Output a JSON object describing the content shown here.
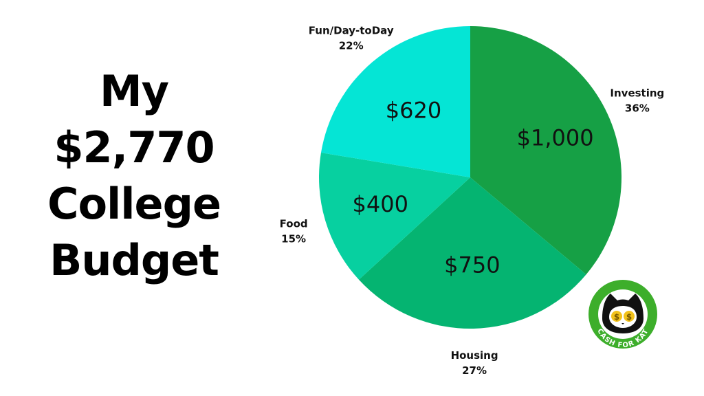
{
  "title_lines": [
    "My",
    "$2,770",
    "College",
    "Budget"
  ],
  "chart_data": {
    "type": "pie",
    "title": "My $2,770 College Budget",
    "total": 2770,
    "start_angle_deg": 0,
    "direction": "clockwise",
    "slices": [
      {
        "name": "Investing",
        "value": 1000,
        "value_label": "$1,000",
        "percent_label": "36%",
        "color": "#16A045"
      },
      {
        "name": "Housing",
        "value": 750,
        "value_label": "$750",
        "percent_label": "27%",
        "color": "#05B471"
      },
      {
        "name": "Food",
        "value": 400,
        "value_label": "$400",
        "percent_label": "15%",
        "color": "#07D0A0"
      },
      {
        "name": "Fun/Day-toDay",
        "value": 620,
        "value_label": "$620",
        "percent_label": "22%",
        "color": "#05E5D5"
      }
    ]
  },
  "logo": {
    "text": "CASH FOR KAT",
    "ring_color": "#3DAE2B",
    "coin_symbol": "$",
    "coin_color": "#F2C21B"
  }
}
